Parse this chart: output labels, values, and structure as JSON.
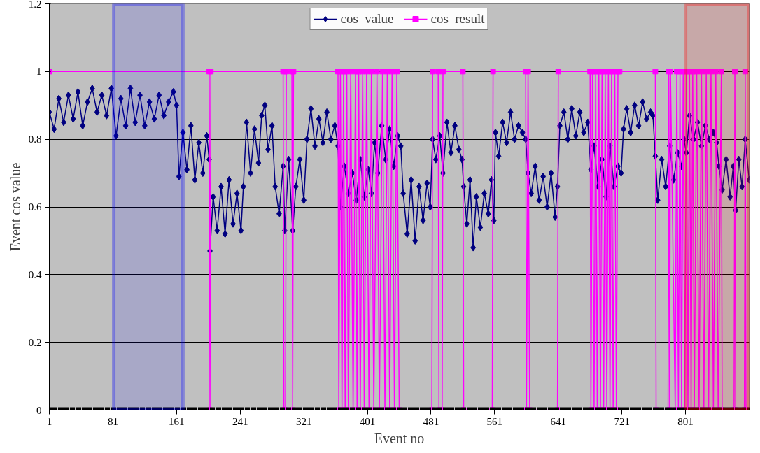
{
  "chart_data": {
    "type": "line",
    "xlabel": "Event no",
    "ylabel": "Event cos value",
    "xlim": [
      1,
      881
    ],
    "xticks": [
      1,
      81,
      161,
      241,
      321,
      401,
      481,
      561,
      641,
      721,
      801
    ],
    "ylim": [
      0,
      1.2
    ],
    "yticks": [
      0,
      0.2,
      0.4,
      0.6,
      0.8,
      1,
      1.2
    ],
    "grid": "y",
    "legend": "top",
    "line_style": "solid",
    "bands": [
      {
        "axis": "x",
        "from": 82,
        "to": 169,
        "color": "#0000ff"
      },
      {
        "axis": "x",
        "from": 801,
        "to": 881,
        "color": "#ff0000"
      }
    ],
    "series": [
      {
        "name": "cos_value",
        "color": "#000080",
        "marker": "diamond",
        "x": [
          1,
          7,
          13,
          19,
          25,
          31,
          37,
          43,
          49,
          55,
          61,
          67,
          73,
          79,
          85,
          91,
          97,
          103,
          109,
          115,
          121,
          127,
          133,
          139,
          145,
          151,
          157,
          161,
          164,
          169,
          174,
          179,
          184,
          189,
          194,
          199,
          202,
          203,
          207,
          212,
          217,
          222,
          227,
          232,
          237,
          242,
          245,
          249,
          254,
          259,
          264,
          268,
          272,
          276,
          281,
          285,
          290,
          295,
          297,
          302,
          307,
          311,
          316,
          321,
          325,
          330,
          335,
          340,
          345,
          350,
          355,
          360,
          364,
          367,
          372,
          377,
          382,
          387,
          392,
          397,
          402,
          406,
          410,
          414,
          419,
          424,
          429,
          434,
          439,
          443,
          446,
          451,
          456,
          461,
          466,
          471,
          476,
          480,
          483,
          487,
          492,
          496,
          501,
          506,
          511,
          516,
          520,
          522,
          526,
          530,
          534,
          538,
          543,
          548,
          553,
          557,
          560,
          562,
          566,
          571,
          576,
          581,
          586,
          591,
          596,
          600,
          603,
          607,
          612,
          617,
          622,
          627,
          632,
          637,
          640,
          643,
          648,
          653,
          658,
          663,
          668,
          673,
          678,
          682,
          686,
          691,
          696,
          701,
          706,
          711,
          716,
          720,
          723,
          727,
          732,
          737,
          742,
          747,
          752,
          757,
          760,
          763,
          766,
          771,
          776,
          781,
          786,
          791,
          796,
          799,
          802,
          806,
          811,
          816,
          821,
          826,
          831,
          836,
          840,
          843,
          847,
          852,
          857,
          861,
          864,
          868,
          872,
          876,
          881
        ],
        "values": [
          0.88,
          0.83,
          0.92,
          0.85,
          0.93,
          0.86,
          0.94,
          0.84,
          0.91,
          0.95,
          0.88,
          0.93,
          0.87,
          0.95,
          0.81,
          0.92,
          0.84,
          0.95,
          0.85,
          0.93,
          0.84,
          0.91,
          0.86,
          0.93,
          0.87,
          0.91,
          0.94,
          0.9,
          0.69,
          0.82,
          0.71,
          0.84,
          0.68,
          0.79,
          0.7,
          0.81,
          0.74,
          0.47,
          0.63,
          0.53,
          0.66,
          0.52,
          0.68,
          0.55,
          0.64,
          0.53,
          0.66,
          0.85,
          0.7,
          0.83,
          0.73,
          0.87,
          0.9,
          0.77,
          0.84,
          0.66,
          0.58,
          0.72,
          0.53,
          0.74,
          0.53,
          0.66,
          0.74,
          0.62,
          0.8,
          0.89,
          0.78,
          0.86,
          0.79,
          0.88,
          0.8,
          0.84,
          0.78,
          0.6,
          0.72,
          0.64,
          0.7,
          0.62,
          0.74,
          0.63,
          0.71,
          0.64,
          0.79,
          0.7,
          0.84,
          0.74,
          0.83,
          0.72,
          0.81,
          0.78,
          0.64,
          0.52,
          0.68,
          0.5,
          0.66,
          0.56,
          0.67,
          0.6,
          0.8,
          0.74,
          0.81,
          0.7,
          0.85,
          0.76,
          0.84,
          0.77,
          0.74,
          0.66,
          0.55,
          0.68,
          0.48,
          0.63,
          0.54,
          0.64,
          0.58,
          0.68,
          0.56,
          0.82,
          0.75,
          0.85,
          0.79,
          0.88,
          0.8,
          0.84,
          0.82,
          0.8,
          0.7,
          0.64,
          0.72,
          0.62,
          0.69,
          0.6,
          0.7,
          0.57,
          0.66,
          0.84,
          0.88,
          0.8,
          0.89,
          0.81,
          0.88,
          0.82,
          0.85,
          0.71,
          0.78,
          0.66,
          0.74,
          0.63,
          0.78,
          0.66,
          0.72,
          0.7,
          0.83,
          0.89,
          0.82,
          0.9,
          0.84,
          0.91,
          0.86,
          0.88,
          0.87,
          0.75,
          0.62,
          0.74,
          0.66,
          0.78,
          0.68,
          0.76,
          0.72,
          0.8,
          0.76,
          0.87,
          0.8,
          0.85,
          0.78,
          0.84,
          0.8,
          0.82,
          0.79,
          0.72,
          0.65,
          0.74,
          0.63,
          0.72,
          0.59,
          0.74,
          0.66,
          0.8,
          0.68
        ]
      },
      {
        "name": "cos_result",
        "color": "#ff00ff",
        "marker": "square",
        "x": [
          1,
          202,
          203,
          204,
          295,
          296,
          298,
          299,
          306,
          307,
          308,
          364,
          365,
          367,
          369,
          371,
          373,
          375,
          377,
          380,
          383,
          386,
          388,
          390,
          392,
          395,
          397,
          400,
          403,
          406,
          409,
          413,
          416,
          420,
          423,
          426,
          429,
          432,
          435,
          438,
          441,
          482,
          483,
          490,
          491,
          495,
          496,
          521,
          522,
          558,
          559,
          600,
          601,
          603,
          605,
          640,
          641,
          681,
          682,
          684,
          686,
          688,
          690,
          692,
          694,
          696,
          698,
          700,
          702,
          704,
          706,
          708,
          710,
          712,
          714,
          716,
          718,
          763,
          764,
          779,
          780,
          781,
          782,
          788,
          790,
          792,
          794,
          796,
          798,
          800,
          802,
          804,
          806,
          808,
          810,
          812,
          815,
          818,
          821,
          824,
          827,
          830,
          833,
          836,
          839,
          842,
          846,
          847,
          862,
          863,
          864,
          875,
          876,
          877,
          881
        ],
        "values": [
          1,
          1,
          0,
          1,
          1,
          0,
          0,
          1,
          1,
          0,
          1,
          1,
          0,
          1,
          0,
          1,
          0,
          1,
          0,
          1,
          0,
          1,
          0,
          1,
          0,
          1,
          0,
          1,
          0,
          1,
          0,
          1,
          0,
          1,
          0,
          1,
          0,
          1,
          0,
          1,
          0,
          0,
          1,
          1,
          0,
          0,
          1,
          1,
          0,
          0,
          1,
          1,
          0,
          1,
          0,
          0,
          1,
          1,
          0,
          1,
          0,
          1,
          0,
          1,
          0,
          1,
          0,
          1,
          0,
          1,
          0,
          1,
          0,
          1,
          0,
          1,
          1,
          1,
          0,
          0,
          1,
          0,
          1,
          0,
          1,
          0,
          1,
          0,
          1,
          0,
          1,
          0,
          1,
          0,
          1,
          0,
          1,
          0,
          1,
          0,
          1,
          0,
          1,
          0,
          1,
          0,
          1,
          0,
          0,
          1,
          0,
          0,
          1,
          0,
          0
        ]
      }
    ]
  }
}
